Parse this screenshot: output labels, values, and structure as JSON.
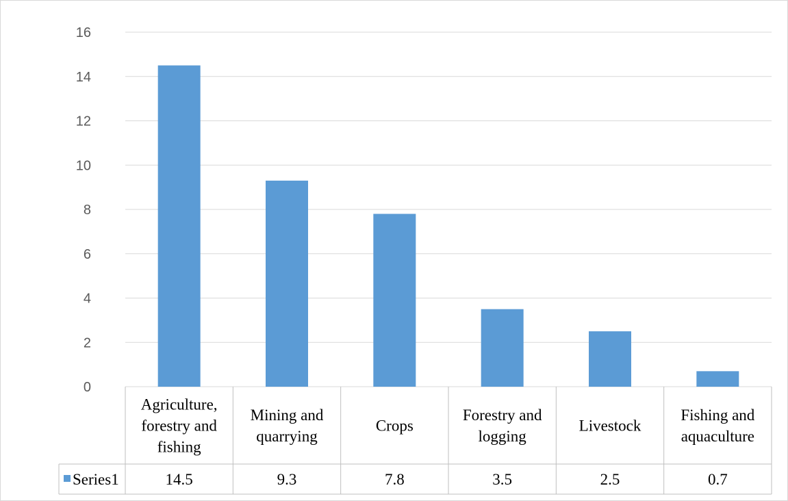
{
  "chart_data": {
    "type": "bar",
    "categories": [
      [
        "Agriculture,",
        "forestry and",
        "fishing"
      ],
      [
        "Mining and",
        "quarrying"
      ],
      [
        "Crops"
      ],
      [
        "Forestry and",
        "logging"
      ],
      [
        "Livestock"
      ],
      [
        "Fishing and",
        "aquaculture"
      ]
    ],
    "series": [
      {
        "name": "Series1",
        "values": [
          14.5,
          9.3,
          7.8,
          3.5,
          2.5,
          0.7
        ],
        "labels": [
          "14.5",
          "9.3",
          "7.8",
          "3.5",
          "2.5",
          "0.7"
        ],
        "color": "#5b9bd5"
      }
    ],
    "yticks": [
      "0",
      "2",
      "4",
      "6",
      "8",
      "10",
      "12",
      "14",
      "16"
    ],
    "ylim": [
      0,
      16
    ],
    "grid": true,
    "legend": "data-table",
    "title": "",
    "xlabel": "",
    "ylabel": ""
  }
}
